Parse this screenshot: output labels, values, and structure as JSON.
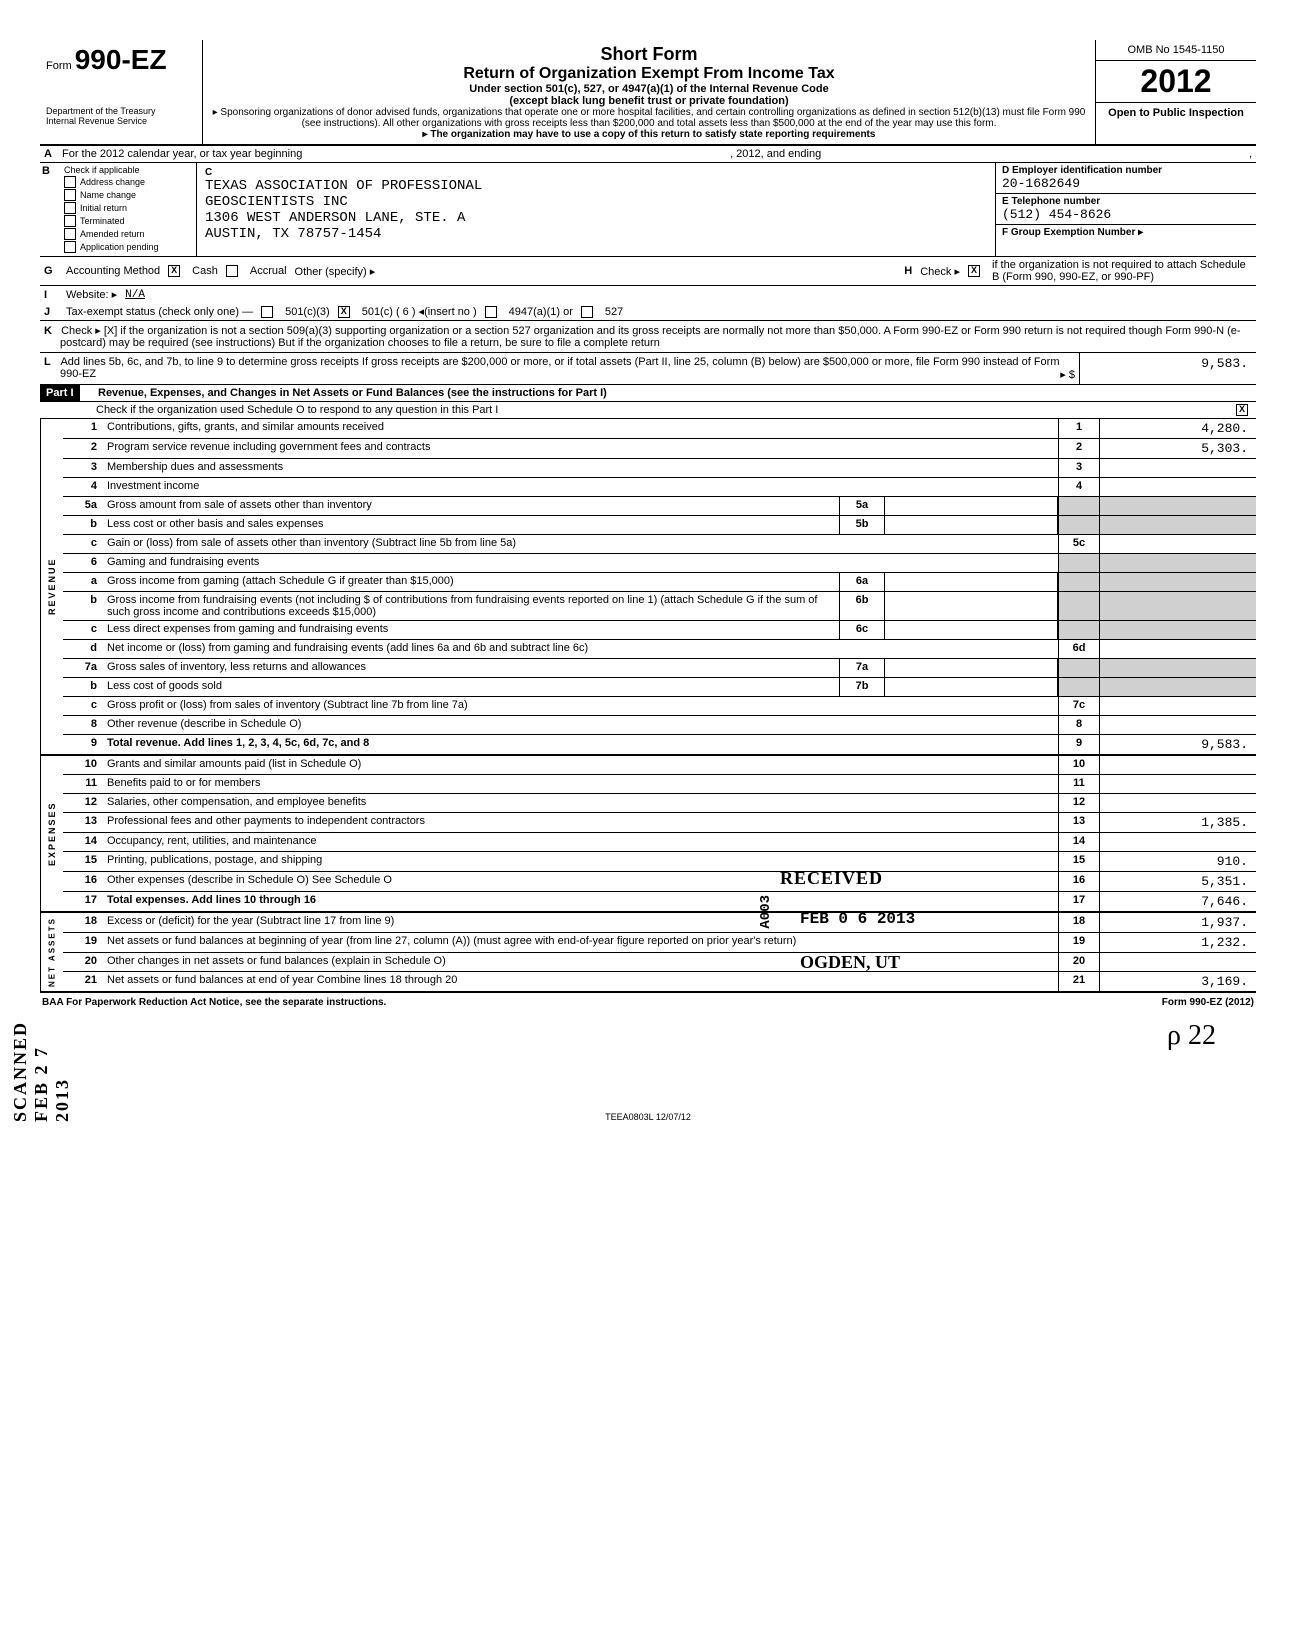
{
  "header": {
    "form_prefix": "Form",
    "form_number": "990-EZ",
    "title1": "Short Form",
    "title2": "Return of Organization Exempt From Income Tax",
    "subtitle1": "Under section 501(c), 527, or 4947(a)(1) of the Internal Revenue Code",
    "subtitle2": "(except black lung benefit trust or private foundation)",
    "note1": "▸ Sponsoring organizations of donor advised funds, organizations that operate one or more hospital facilities, and certain controlling organizations as defined in section 512(b)(13) must file Form 990 (see instructions). All other organizations with gross receipts less than $200,000 and total assets less than $500,000 at the end of the year may use this form.",
    "note2": "▸ The organization may have to use a copy of this return to satisfy state reporting requirements",
    "dept1": "Department of the Treasury",
    "dept2": "Internal Revenue Service",
    "omb": "OMB No 1545-1150",
    "year": "2012",
    "inspection": "Open to Public Inspection"
  },
  "row_a": {
    "label": "A",
    "text": "For the 2012 calendar year, or tax year beginning",
    "mid": ", 2012, and ending",
    "end": ","
  },
  "section_b": {
    "label": "B",
    "check_label": "Check if applicable",
    "checks": [
      {
        "label": "Address change",
        "checked": false
      },
      {
        "label": "Name change",
        "checked": false
      },
      {
        "label": "Initial return",
        "checked": false
      },
      {
        "label": "Terminated",
        "checked": false
      },
      {
        "label": "Amended return",
        "checked": false
      },
      {
        "label": "Application pending",
        "checked": false
      }
    ],
    "c_label": "C",
    "org_name1": "TEXAS ASSOCIATION OF PROFESSIONAL",
    "org_name2": "GEOSCIENTISTS INC",
    "addr1": "1306 WEST ANDERSON LANE, STE. A",
    "addr2": "AUSTIN, TX 78757-1454",
    "d_label": "D Employer identification number",
    "ein": "20-1682649",
    "e_label": "E Telephone number",
    "phone": "(512) 454-8626",
    "f_label": "F Group Exemption Number ▸"
  },
  "row_g": {
    "g": "G",
    "g_text": "Accounting Method",
    "cash": "Cash",
    "cash_x": "X",
    "accrual": "Accrual",
    "other": "Other (specify) ▸",
    "h": "H",
    "h_text": "Check ▸",
    "h_x": "X",
    "h_rest": "if the organization is not required to attach Schedule B (Form 990, 990-EZ, or 990-PF)"
  },
  "row_i": {
    "i": "I",
    "text": "Website: ▸",
    "val": "N/A"
  },
  "row_j": {
    "j": "J",
    "text": "Tax-exempt status (check only one) —",
    "opt1": "501(c)(3)",
    "opt2_x": "X",
    "opt2": "501(c) ( 6 ) ◂(insert no )",
    "opt3": "4947(a)(1) or",
    "opt4": "527"
  },
  "row_k": {
    "k": "K",
    "text": "Check ▸ [X] if the organization is not a section 509(a)(3) supporting organization or a section 527 organization and its gross receipts are normally not more than $50,000. A Form 990-EZ or Form 990 return is not required though Form 990-N (e-postcard) may be required (see instructions)  But if the organization chooses to file a return, be sure to file a complete return"
  },
  "row_l": {
    "l": "L",
    "text": "Add lines 5b, 6c, and 7b, to line 9 to determine gross receipts  If gross receipts are $200,000 or more, or if total assets (Part II, line 25, column (B) below) are $500,000 or more, file Form 990 instead of Form 990-EZ",
    "arrow": "▸ $",
    "amount": "9,583."
  },
  "part1": {
    "label": "Part I",
    "title": "Revenue, Expenses, and Changes in Net Assets or Fund Balances (see the instructions for Part I)",
    "check_text": "Check if the organization used Schedule O to respond to any question in this Part I",
    "check_x": "X"
  },
  "revenue": {
    "label": "REVENUE",
    "rows": [
      {
        "num": "1",
        "desc": "Contributions, gifts, grants, and similar amounts received",
        "rnum": "1",
        "rval": "4,280."
      },
      {
        "num": "2",
        "desc": "Program service revenue including government fees and contracts",
        "rnum": "2",
        "rval": "5,303."
      },
      {
        "num": "3",
        "desc": "Membership dues and assessments",
        "rnum": "3",
        "rval": ""
      },
      {
        "num": "4",
        "desc": "Investment income",
        "rnum": "4",
        "rval": ""
      },
      {
        "num": "5a",
        "desc": "Gross amount from sale of assets other than inventory",
        "mnum": "5a",
        "mval": "",
        "shaded": true
      },
      {
        "num": "b",
        "desc": "Less  cost or other basis and sales expenses",
        "mnum": "5b",
        "mval": "",
        "shaded": true
      },
      {
        "num": "c",
        "desc": "Gain or (loss) from sale of assets other than inventory (Subtract line 5b from line 5a)",
        "rnum": "5c",
        "rval": ""
      },
      {
        "num": "6",
        "desc": "Gaming and fundraising events",
        "shaded": true
      },
      {
        "num": "a",
        "desc": "Gross income from gaming (attach Schedule G if greater than $15,000)",
        "mnum": "6a",
        "mval": "",
        "shaded": true
      },
      {
        "num": "b",
        "desc": "Gross income from fundraising events (not including $                      of contributions from fundraising events reported on line 1) (attach Schedule G if the sum of such gross income and contributions exceeds $15,000)",
        "mnum": "6b",
        "mval": "",
        "shaded": true
      },
      {
        "num": "c",
        "desc": "Less  direct expenses from gaming and fundraising events",
        "mnum": "6c",
        "mval": "",
        "shaded": true
      },
      {
        "num": "d",
        "desc": "Net income or (loss) from gaming and fundraising events (add lines 6a and 6b and subtract line 6c)",
        "rnum": "6d",
        "rval": ""
      },
      {
        "num": "7a",
        "desc": "Gross sales of inventory, less returns and allowances",
        "mnum": "7a",
        "mval": "",
        "shaded": true
      },
      {
        "num": "b",
        "desc": "Less  cost of goods sold",
        "mnum": "7b",
        "mval": "",
        "shaded": true
      },
      {
        "num": "c",
        "desc": "Gross profit or (loss) from sales of inventory (Subtract line 7b from line 7a)",
        "rnum": "7c",
        "rval": ""
      },
      {
        "num": "8",
        "desc": "Other revenue (describe in Schedule O)",
        "rnum": "8",
        "rval": ""
      },
      {
        "num": "9",
        "desc": "Total revenue. Add lines 1, 2, 3, 4, 5c, 6d, 7c, and 8",
        "rnum": "9",
        "rval": "9,583.",
        "bold": true
      }
    ]
  },
  "expenses": {
    "label": "EXPENSES",
    "rows": [
      {
        "num": "10",
        "desc": "Grants and similar amounts paid (list in Schedule O)",
        "rnum": "10",
        "rval": ""
      },
      {
        "num": "11",
        "desc": "Benefits paid to or for members",
        "rnum": "11",
        "rval": ""
      },
      {
        "num": "12",
        "desc": "Salaries, other compensation, and employee benefits",
        "rnum": "12",
        "rval": ""
      },
      {
        "num": "13",
        "desc": "Professional fees and other payments to independent contractors",
        "rnum": "13",
        "rval": "1,385."
      },
      {
        "num": "14",
        "desc": "Occupancy, rent, utilities, and maintenance",
        "rnum": "14",
        "rval": ""
      },
      {
        "num": "15",
        "desc": "Printing, publications, postage, and shipping",
        "rnum": "15",
        "rval": "910."
      },
      {
        "num": "16",
        "desc": "Other expenses (describe in Schedule O)                                          See Schedule O",
        "rnum": "16",
        "rval": "5,351."
      },
      {
        "num": "17",
        "desc": "Total expenses. Add lines 10 through 16",
        "rnum": "17",
        "rval": "7,646.",
        "bold": true,
        "arrow": "▸"
      }
    ]
  },
  "netassets": {
    "label": "NET ASSETS",
    "rows": [
      {
        "num": "18",
        "desc": "Excess or (deficit) for the year (Subtract line 17 from line 9)",
        "rnum": "18",
        "rval": "1,937."
      },
      {
        "num": "19",
        "desc": "Net assets or fund balances at beginning of year (from line 27, column (A)) (must agree with end-of-year figure reported on prior year's return)",
        "rnum": "19",
        "rval": "1,232."
      },
      {
        "num": "20",
        "desc": "Other changes in net assets or fund balances (explain in Schedule O)",
        "rnum": "20",
        "rval": ""
      },
      {
        "num": "21",
        "desc": "Net assets or fund balances at end of year  Combine lines 18 through 20",
        "rnum": "21",
        "rval": "3,169.",
        "arrow": "▸"
      }
    ]
  },
  "footer": {
    "left": "BAA  For Paperwork Reduction Act Notice, see the separate instructions.",
    "right": "Form 990-EZ (2012)"
  },
  "stamps": {
    "received": "RECEIVED",
    "date": "FEB 0 6 2013",
    "ogden": "OGDEN, UT",
    "a003": "A003",
    "scanned": "SCANNED FEB 2 7 2013"
  },
  "sig": "ρ 22",
  "teea": "TEEA0803L  12/07/12",
  "colors": {
    "text": "#000000",
    "bg": "#ffffff",
    "shade": "#d0d0d0"
  }
}
